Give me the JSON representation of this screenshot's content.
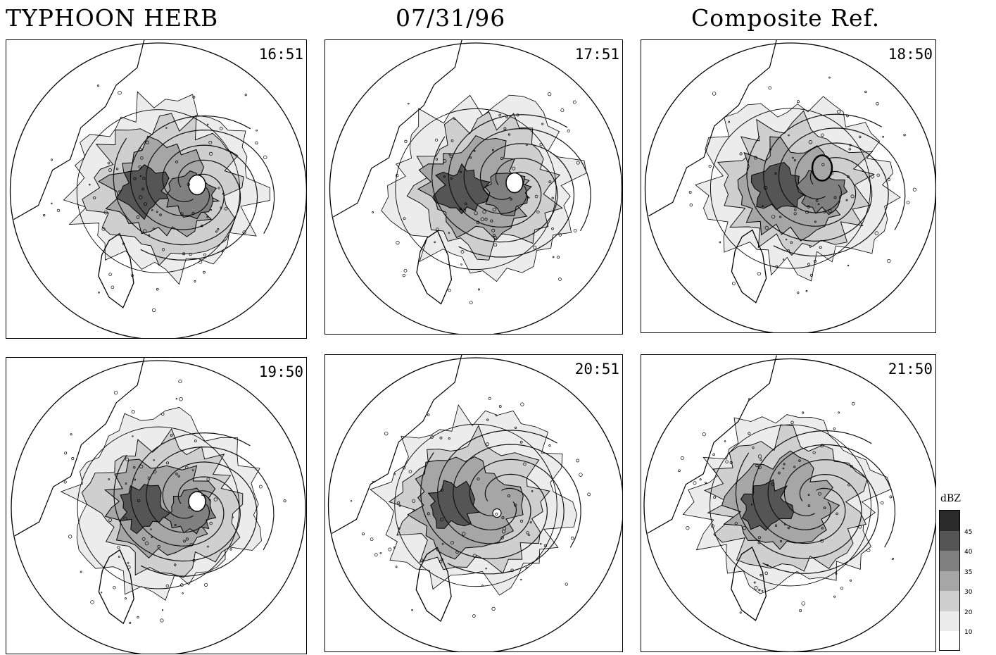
{
  "header": {
    "storm": "TYPHOON HERB",
    "date": "07/31/96",
    "product": "Composite Ref."
  },
  "panels": [
    {
      "time": "16:51",
      "eye": "clear",
      "intensity": "strong"
    },
    {
      "time": "17:51",
      "eye": "clear",
      "intensity": "strong"
    },
    {
      "time": "18:50",
      "eye": "ring",
      "intensity": "strong"
    },
    {
      "time": "19:50",
      "eye": "clear",
      "intensity": "strong"
    },
    {
      "time": "20:51",
      "eye": "small",
      "intensity": "moderate"
    },
    {
      "time": "21:50",
      "eye": "none",
      "intensity": "moderate"
    }
  ],
  "legend": {
    "title": "dBZ",
    "levels": [
      "45",
      "40",
      "35",
      "30",
      "20",
      "10"
    ],
    "colors": [
      "#2a2a2a",
      "#555555",
      "#808080",
      "#a6a6a6",
      "#cfcfcf",
      "#ececec",
      "#ffffff"
    ]
  }
}
